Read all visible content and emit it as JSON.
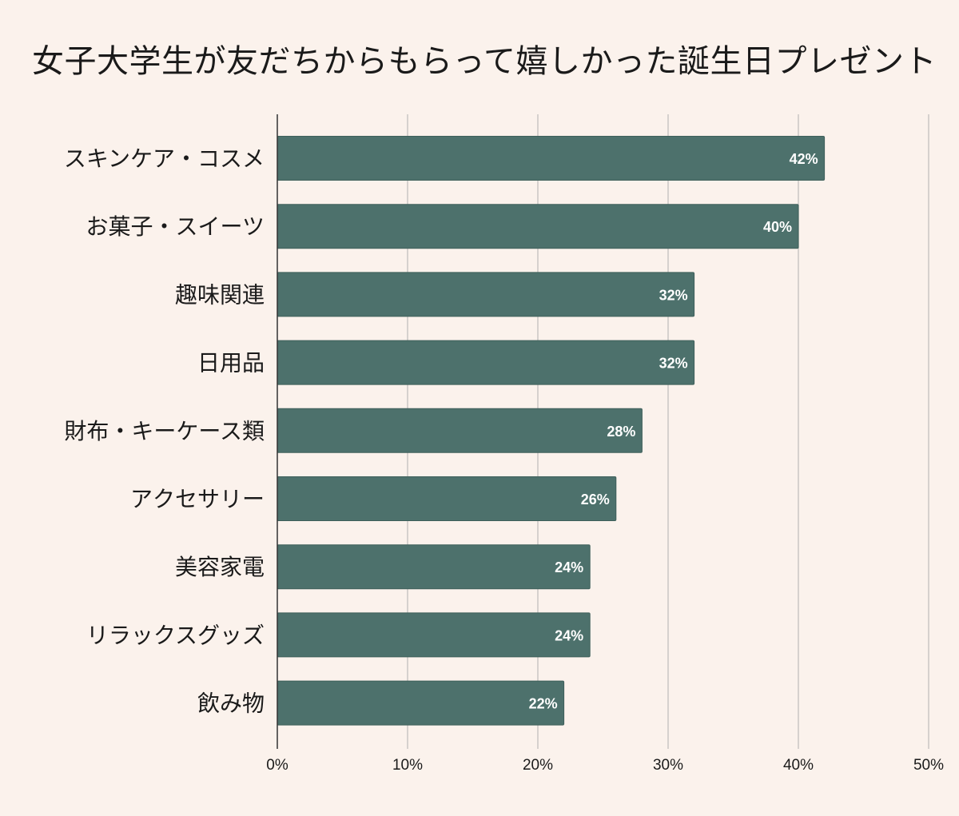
{
  "chart_data": {
    "type": "bar",
    "orientation": "horizontal",
    "title": "女子大学生が友だちからもらって嬉しかった誕生日プレゼント",
    "categories": [
      "スキンケア・コスメ",
      "お菓子・スイーツ",
      "趣味関連",
      "日用品",
      "財布・キーケース類",
      "アクセサリー",
      "美容家電",
      "リラックスグッズ",
      "飲み物"
    ],
    "values": [
      42,
      40,
      32,
      32,
      28,
      26,
      24,
      24,
      22
    ],
    "data_labels": [
      "42%",
      "40%",
      "32%",
      "32%",
      "28%",
      "26%",
      "24%",
      "24%",
      "22%"
    ],
    "xlim": [
      0,
      50
    ],
    "x_ticks": [
      0,
      10,
      20,
      30,
      40,
      50
    ],
    "x_tick_labels": [
      "0%",
      "10%",
      "20%",
      "30%",
      "40%",
      "50%"
    ],
    "grid": true,
    "legend": "none",
    "colors": {
      "bar": "#4d716c",
      "bar_edge": "#3e5f5a",
      "background": "#fbf2ec",
      "grid": "#c9c6c4",
      "axis": "#333333",
      "text": "#1a1a1a",
      "data_label": "#ffffff"
    }
  }
}
